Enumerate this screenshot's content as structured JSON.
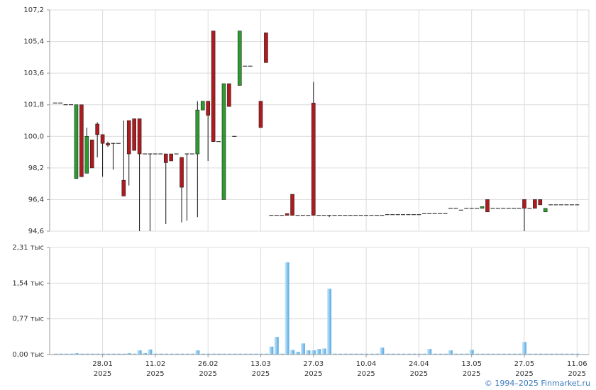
{
  "chart_data": [
    {
      "type": "candlestick",
      "open": [
        101.9,
        101.9,
        101.8,
        101.8,
        97.6,
        101.8,
        97.9,
        99.8,
        100.7,
        100.1,
        99.6,
        99.6,
        99.6,
        97.5,
        100.9,
        101.0,
        101.0,
        99.0,
        99.0,
        99.0,
        99.0,
        99.0,
        99.0,
        99.0,
        98.8,
        99.0,
        99.0,
        99.0,
        101.5,
        102.0,
        106.0,
        99.7,
        96.4,
        103.0,
        100.0,
        102.9,
        104.0,
        104.0,
        null,
        102.0,
        105.9,
        95.5,
        95.5,
        95.5,
        95.6,
        96.7,
        95.5,
        95.5,
        95.5,
        101.9,
        95.5,
        95.5,
        95.5,
        95.5,
        95.5,
        95.5,
        95.5,
        95.5,
        95.5,
        95.5,
        95.5,
        95.5,
        95.5,
        95.54,
        95.54,
        95.54,
        95.54,
        95.54,
        95.54,
        95.54,
        95.6,
        95.6,
        95.6,
        95.6,
        95.6,
        95.9,
        95.9,
        95.8,
        95.9,
        95.9,
        95.9,
        95.9,
        96.4,
        95.9,
        95.9,
        95.9,
        95.9,
        95.9,
        95.9,
        96.4,
        95.9,
        96.4,
        96.4,
        95.7,
        96.1,
        96.1,
        96.1,
        96.1,
        96.1,
        96.1
      ],
      "high": [
        101.9,
        101.9,
        101.8,
        101.8,
        101.8,
        101.8,
        100.5,
        99.8,
        100.8,
        100.1,
        99.7,
        99.6,
        99.6,
        100.9,
        100.9,
        101.0,
        101.0,
        99.0,
        99.0,
        99.0,
        99.0,
        99.0,
        99.0,
        99.0,
        98.8,
        99.0,
        99.0,
        102.0,
        102.0,
        102.0,
        106.0,
        99.7,
        103.0,
        103.0,
        100.0,
        106.0,
        104.0,
        104.0,
        null,
        102.0,
        105.9,
        95.5,
        95.5,
        95.5,
        95.6,
        96.7,
        95.5,
        95.5,
        95.5,
        103.1,
        95.5,
        95.5,
        95.5,
        95.5,
        95.5,
        95.5,
        95.5,
        95.5,
        95.5,
        95.5,
        95.5,
        95.5,
        95.5,
        95.54,
        95.54,
        95.54,
        95.54,
        95.54,
        95.54,
        95.54,
        95.6,
        95.6,
        95.6,
        95.6,
        95.6,
        95.9,
        95.9,
        95.8,
        95.9,
        95.9,
        95.9,
        96.0,
        96.4,
        95.9,
        95.9,
        95.9,
        95.9,
        95.9,
        95.9,
        96.4,
        95.9,
        96.4,
        96.4,
        95.9,
        96.1,
        96.1,
        96.1,
        96.1,
        96.1,
        96.1
      ],
      "low": [
        101.9,
        101.9,
        101.8,
        101.8,
        97.6,
        97.7,
        97.9,
        98.2,
        98.8,
        97.7,
        99.4,
        98.1,
        99.6,
        96.6,
        97.2,
        99.2,
        94.6,
        99.0,
        94.6,
        99.0,
        99.0,
        95.0,
        98.6,
        99.0,
        95.1,
        95.2,
        99.0,
        95.4,
        101.5,
        98.6,
        99.7,
        99.7,
        96.4,
        101.7,
        100.0,
        102.9,
        104.0,
        104.0,
        null,
        100.5,
        104.2,
        95.5,
        95.5,
        95.5,
        95.5,
        95.5,
        95.5,
        95.5,
        95.5,
        95.5,
        95.5,
        95.5,
        95.4,
        95.5,
        95.5,
        95.5,
        95.5,
        95.5,
        95.5,
        95.5,
        95.5,
        95.5,
        95.5,
        95.54,
        95.54,
        95.54,
        95.54,
        95.54,
        95.54,
        95.54,
        95.6,
        95.6,
        95.6,
        95.6,
        95.6,
        95.9,
        95.9,
        95.8,
        95.9,
        95.9,
        95.9,
        95.9,
        95.7,
        95.9,
        95.9,
        95.9,
        95.9,
        95.9,
        95.9,
        94.6,
        95.9,
        95.9,
        96.1,
        95.7,
        96.1,
        96.1,
        96.1,
        96.1,
        96.1,
        96.1
      ],
      "close": [
        101.9,
        101.9,
        101.8,
        101.8,
        101.8,
        97.7,
        100.0,
        98.2,
        100.1,
        99.6,
        99.5,
        99.6,
        99.6,
        96.6,
        99.0,
        99.2,
        99.0,
        99.0,
        99.0,
        99.0,
        99.0,
        98.5,
        98.6,
        99.0,
        97.1,
        99.0,
        99.0,
        101.5,
        102.0,
        101.2,
        99.7,
        99.7,
        103.0,
        101.7,
        100.0,
        106.0,
        104.0,
        104.0,
        null,
        100.5,
        104.2,
        95.5,
        95.5,
        95.5,
        95.5,
        95.5,
        95.5,
        95.5,
        95.5,
        95.5,
        95.5,
        95.5,
        95.5,
        95.5,
        95.5,
        95.5,
        95.5,
        95.5,
        95.5,
        95.5,
        95.5,
        95.5,
        95.5,
        95.54,
        95.54,
        95.54,
        95.54,
        95.54,
        95.54,
        95.54,
        95.6,
        95.6,
        95.6,
        95.6,
        95.6,
        95.9,
        95.9,
        95.8,
        95.9,
        95.9,
        95.9,
        96.0,
        95.7,
        95.9,
        95.9,
        95.9,
        95.9,
        95.9,
        95.9,
        95.9,
        95.9,
        95.9,
        96.1,
        95.9,
        96.1,
        96.1,
        96.1,
        96.1,
        96.1,
        96.1
      ],
      "up_color": "#2e9b2e",
      "down_color": "#b01a1e",
      "ylim": [
        94.6,
        107.2
      ],
      "yticks": [
        {
          "value": 94.6,
          "label": "94,6"
        },
        {
          "value": 96.4,
          "label": "96,4"
        },
        {
          "value": 98.2,
          "label": "98,2"
        },
        {
          "value": 100.0,
          "label": "100,0"
        },
        {
          "value": 101.8,
          "label": "101,8"
        },
        {
          "value": 103.6,
          "label": "103,6"
        },
        {
          "value": 105.4,
          "label": "105,4"
        },
        {
          "value": 107.2,
          "label": "107,2"
        }
      ],
      "grid": true
    },
    {
      "type": "bar",
      "categories": [
        null,
        null,
        null,
        null,
        null,
        null,
        null,
        null,
        null,
        [
          "28.01",
          "2025"
        ],
        null,
        null,
        null,
        null,
        null,
        null,
        null,
        null,
        null,
        [
          "11.02",
          "2025"
        ],
        null,
        null,
        null,
        null,
        null,
        null,
        null,
        null,
        null,
        [
          "26.02",
          "2025"
        ],
        null,
        null,
        null,
        null,
        null,
        null,
        null,
        null,
        null,
        [
          "13.03",
          "2025"
        ],
        null,
        null,
        null,
        null,
        null,
        null,
        null,
        null,
        null,
        [
          "27.03",
          "2025"
        ],
        null,
        null,
        null,
        null,
        null,
        null,
        null,
        null,
        null,
        [
          "10.04",
          "2025"
        ],
        null,
        null,
        null,
        null,
        null,
        null,
        null,
        null,
        null,
        [
          "24.04",
          "2025"
        ],
        null,
        null,
        null,
        null,
        null,
        null,
        null,
        null,
        null,
        [
          "13.05",
          "2025"
        ],
        null,
        null,
        null,
        null,
        null,
        null,
        null,
        null,
        null,
        [
          "27.05",
          "2025"
        ],
        null,
        null,
        null,
        null,
        null,
        null,
        null,
        null,
        null,
        [
          "11.06",
          "2025"
        ]
      ],
      "values": [
        0.02,
        0.02,
        0.02,
        0.02,
        0.03,
        0.02,
        0.02,
        0.02,
        0.02,
        0.02,
        0.02,
        0.02,
        0.02,
        0.02,
        0.03,
        0.02,
        0.09,
        0.03,
        0.11,
        0.02,
        0.02,
        0.02,
        0.02,
        0.02,
        0.02,
        0.02,
        0.02,
        0.09,
        0.02,
        0.02,
        0.02,
        0.02,
        0.02,
        0.02,
        0.02,
        0.02,
        0.02,
        0.02,
        0.02,
        0.02,
        0.02,
        0.17,
        0.38,
        0.02,
        1.99,
        0.1,
        0.06,
        0.24,
        0.09,
        0.09,
        0.12,
        0.13,
        1.42,
        0.02,
        0.02,
        0.02,
        0.02,
        0.02,
        0.02,
        0.02,
        0.02,
        0.02,
        0.15,
        0.02,
        0.02,
        0.02,
        0.02,
        0.02,
        0.02,
        0.02,
        0.02,
        0.12,
        0.02,
        0.02,
        0.02,
        0.09,
        0.02,
        0.02,
        0.02,
        0.1,
        0.02,
        0.02,
        0.02,
        0.02,
        0.02,
        0.02,
        0.02,
        0.02,
        0.02,
        0.27,
        0.02,
        0.02,
        0.02,
        0.02,
        0.02,
        0.02,
        0.02,
        0.02,
        0.02,
        0.02
      ],
      "color": "#8cc8ef",
      "ylim": [
        0,
        2.31
      ],
      "yticks": [
        {
          "value": 0,
          "label": "0,00 тыс"
        },
        {
          "value": 0.77,
          "label": "0,77 тыс"
        },
        {
          "value": 1.54,
          "label": "1,54 тыс"
        },
        {
          "value": 2.31,
          "label": "2,31 тыс"
        }
      ],
      "grid": true
    }
  ],
  "footer": "© 1994–2025 Finmarket.ru"
}
